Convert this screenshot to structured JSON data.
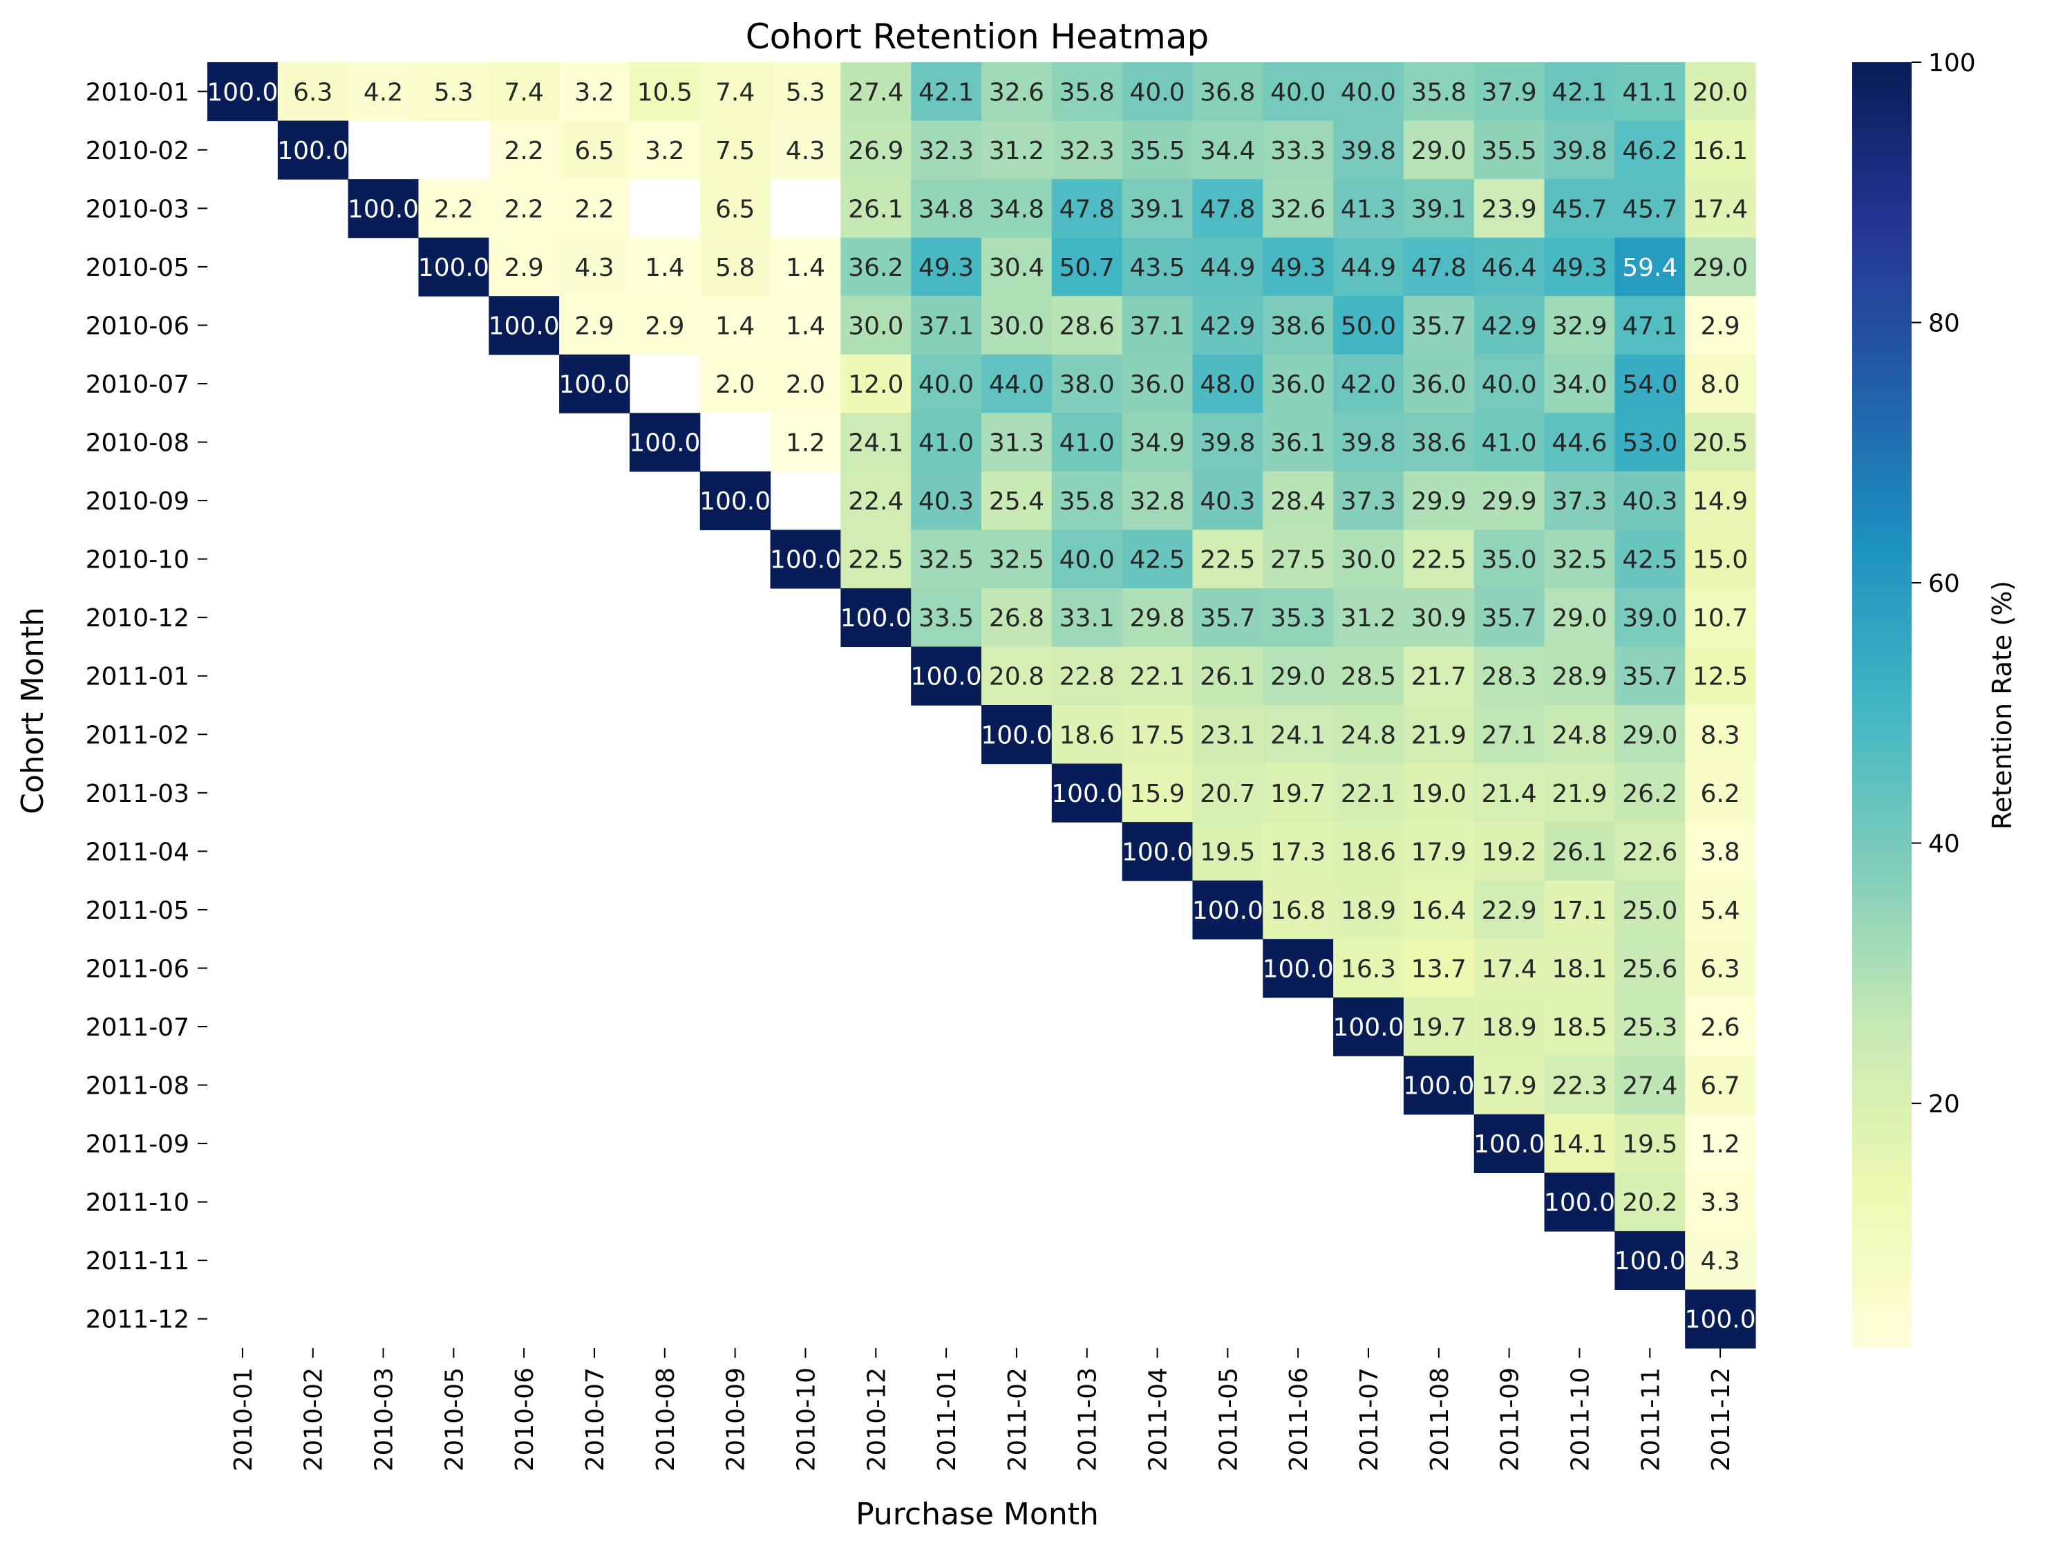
{
  "chart_data": {
    "type": "heatmap",
    "title": "Cohort Retention Heatmap",
    "xlabel": "Purchase Month",
    "ylabel": "Cohort Month",
    "colorbar_label": "Retention Rate (%)",
    "colormap": "YlGnBu",
    "vmin": 1.2,
    "vmax": 100,
    "colorbar_ticks": [
      20,
      40,
      60,
      80,
      100
    ],
    "x_categories": [
      "2010-01",
      "2010-02",
      "2010-03",
      "2010-05",
      "2010-06",
      "2010-07",
      "2010-08",
      "2010-09",
      "2010-10",
      "2010-12",
      "2011-01",
      "2011-02",
      "2011-03",
      "2011-04",
      "2011-05",
      "2011-06",
      "2011-07",
      "2011-08",
      "2011-09",
      "2011-10",
      "2011-11",
      "2011-12"
    ],
    "y_categories": [
      "2010-01",
      "2010-02",
      "2010-03",
      "2010-05",
      "2010-06",
      "2010-07",
      "2010-08",
      "2010-09",
      "2010-10",
      "2010-12",
      "2011-01",
      "2011-02",
      "2011-03",
      "2011-04",
      "2011-05",
      "2011-06",
      "2011-07",
      "2011-08",
      "2011-09",
      "2011-10",
      "2011-11",
      "2011-12"
    ],
    "values": [
      [
        100.0,
        6.3,
        4.2,
        5.3,
        7.4,
        3.2,
        10.5,
        7.4,
        5.3,
        27.4,
        42.1,
        32.6,
        35.8,
        40.0,
        36.8,
        40.0,
        40.0,
        35.8,
        37.9,
        42.1,
        41.1,
        20.0
      ],
      [
        null,
        100.0,
        null,
        null,
        2.2,
        6.5,
        3.2,
        7.5,
        4.3,
        26.9,
        32.3,
        31.2,
        32.3,
        35.5,
        34.4,
        33.3,
        39.8,
        29.0,
        35.5,
        39.8,
        46.2,
        16.1
      ],
      [
        null,
        null,
        100.0,
        2.2,
        2.2,
        2.2,
        null,
        6.5,
        null,
        26.1,
        34.8,
        34.8,
        47.8,
        39.1,
        47.8,
        32.6,
        41.3,
        39.1,
        23.9,
        45.7,
        45.7,
        17.4
      ],
      [
        null,
        null,
        null,
        100.0,
        2.9,
        4.3,
        1.4,
        5.8,
        1.4,
        36.2,
        49.3,
        30.4,
        50.7,
        43.5,
        44.9,
        49.3,
        44.9,
        47.8,
        46.4,
        49.3,
        59.4,
        29.0
      ],
      [
        null,
        null,
        null,
        null,
        100.0,
        2.9,
        2.9,
        1.4,
        1.4,
        30.0,
        37.1,
        30.0,
        28.6,
        37.1,
        42.9,
        38.6,
        50.0,
        35.7,
        42.9,
        32.9,
        47.1,
        2.9
      ],
      [
        null,
        null,
        null,
        null,
        null,
        100.0,
        null,
        2.0,
        2.0,
        12.0,
        40.0,
        44.0,
        38.0,
        36.0,
        48.0,
        36.0,
        42.0,
        36.0,
        40.0,
        34.0,
        54.0,
        8.0
      ],
      [
        null,
        null,
        null,
        null,
        null,
        null,
        100.0,
        null,
        1.2,
        24.1,
        41.0,
        31.3,
        41.0,
        34.9,
        39.8,
        36.1,
        39.8,
        38.6,
        41.0,
        44.6,
        53.0,
        20.5
      ],
      [
        null,
        null,
        null,
        null,
        null,
        null,
        null,
        100.0,
        null,
        22.4,
        40.3,
        25.4,
        35.8,
        32.8,
        40.3,
        28.4,
        37.3,
        29.9,
        29.9,
        37.3,
        40.3,
        14.9
      ],
      [
        null,
        null,
        null,
        null,
        null,
        null,
        null,
        null,
        100.0,
        22.5,
        32.5,
        32.5,
        40.0,
        42.5,
        22.5,
        27.5,
        30.0,
        22.5,
        35.0,
        32.5,
        42.5,
        15.0
      ],
      [
        null,
        null,
        null,
        null,
        null,
        null,
        null,
        null,
        null,
        100.0,
        33.5,
        26.8,
        33.1,
        29.8,
        35.7,
        35.3,
        31.2,
        30.9,
        35.7,
        29.0,
        39.0,
        10.7
      ],
      [
        null,
        null,
        null,
        null,
        null,
        null,
        null,
        null,
        null,
        null,
        100.0,
        20.8,
        22.8,
        22.1,
        26.1,
        29.0,
        28.5,
        21.7,
        28.3,
        28.9,
        35.7,
        12.5
      ],
      [
        null,
        null,
        null,
        null,
        null,
        null,
        null,
        null,
        null,
        null,
        null,
        100.0,
        18.6,
        17.5,
        23.1,
        24.1,
        24.8,
        21.9,
        27.1,
        24.8,
        29.0,
        8.3
      ],
      [
        null,
        null,
        null,
        null,
        null,
        null,
        null,
        null,
        null,
        null,
        null,
        null,
        100.0,
        15.9,
        20.7,
        19.7,
        22.1,
        19.0,
        21.4,
        21.9,
        26.2,
        6.2
      ],
      [
        null,
        null,
        null,
        null,
        null,
        null,
        null,
        null,
        null,
        null,
        null,
        null,
        null,
        100.0,
        19.5,
        17.3,
        18.6,
        17.9,
        19.2,
        26.1,
        22.6,
        3.8
      ],
      [
        null,
        null,
        null,
        null,
        null,
        null,
        null,
        null,
        null,
        null,
        null,
        null,
        null,
        null,
        100.0,
        16.8,
        18.9,
        16.4,
        22.9,
        17.1,
        25.0,
        5.4
      ],
      [
        null,
        null,
        null,
        null,
        null,
        null,
        null,
        null,
        null,
        null,
        null,
        null,
        null,
        null,
        null,
        100.0,
        16.3,
        13.7,
        17.4,
        18.1,
        25.6,
        6.3
      ],
      [
        null,
        null,
        null,
        null,
        null,
        null,
        null,
        null,
        null,
        null,
        null,
        null,
        null,
        null,
        null,
        null,
        100.0,
        19.7,
        18.9,
        18.5,
        25.3,
        2.6
      ],
      [
        null,
        null,
        null,
        null,
        null,
        null,
        null,
        null,
        null,
        null,
        null,
        null,
        null,
        null,
        null,
        null,
        null,
        100.0,
        17.9,
        22.3,
        27.4,
        6.7
      ],
      [
        null,
        null,
        null,
        null,
        null,
        null,
        null,
        null,
        null,
        null,
        null,
        null,
        null,
        null,
        null,
        null,
        null,
        null,
        100.0,
        14.1,
        19.5,
        1.2
      ],
      [
        null,
        null,
        null,
        null,
        null,
        null,
        null,
        null,
        null,
        null,
        null,
        null,
        null,
        null,
        null,
        null,
        null,
        null,
        null,
        100.0,
        20.2,
        3.3
      ],
      [
        null,
        null,
        null,
        null,
        null,
        null,
        null,
        null,
        null,
        null,
        null,
        null,
        null,
        null,
        null,
        null,
        null,
        null,
        null,
        null,
        100.0,
        4.3
      ],
      [
        null,
        null,
        null,
        null,
        null,
        null,
        null,
        null,
        null,
        null,
        null,
        null,
        null,
        null,
        null,
        null,
        null,
        null,
        null,
        null,
        null,
        100.0
      ]
    ]
  }
}
